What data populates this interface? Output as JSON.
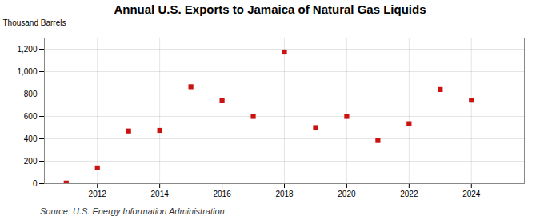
{
  "chart_data": {
    "type": "scatter",
    "title": "Annual U.S. Exports to Jamaica of Natural Gas Liquids",
    "ylabel": "Thousand Barrels",
    "annotations": [
      "Source: U.S. Energy Information Administration"
    ],
    "x": [
      2011,
      2012,
      2013,
      2014,
      2015,
      2016,
      2017,
      2018,
      2019,
      2020,
      2021,
      2022,
      2023,
      2024
    ],
    "values": [
      5,
      140,
      470,
      475,
      865,
      740,
      600,
      1175,
      500,
      600,
      385,
      535,
      840,
      745
    ],
    "color": "#cc1111",
    "marker": "square",
    "xlim": [
      2010.3,
      2025.7
    ],
    "xticks": [
      2012,
      2014,
      2016,
      2018,
      2020,
      2022,
      2024
    ],
    "ylim": [
      0,
      1300
    ],
    "yticks": [
      0,
      200,
      400,
      600,
      800,
      {
        "value": 1000,
        "label": "1,000"
      },
      {
        "value": 1200,
        "label": "1,200"
      }
    ],
    "grid": true
  }
}
